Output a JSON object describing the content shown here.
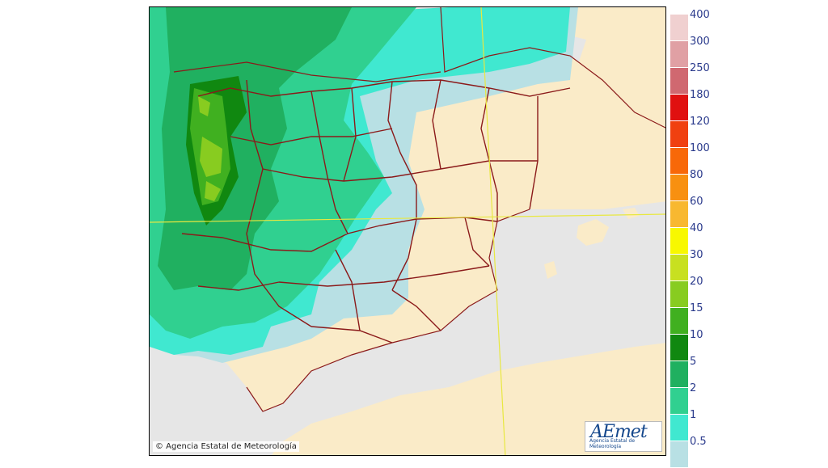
{
  "map": {
    "copyright": "© Agencia Estatal de Meteorología",
    "logo": {
      "word": "AEmet",
      "subtitle": "Agencia Estatal de Meteorología"
    }
  },
  "legend": {
    "unit": "",
    "items": [
      {
        "label": "400",
        "color": "#f0d0d0"
      },
      {
        "label": "300",
        "color": "#e0a0a4"
      },
      {
        "label": "250",
        "color": "#d06870"
      },
      {
        "label": "180",
        "color": "#e01010"
      },
      {
        "label": "120",
        "color": "#f04010"
      },
      {
        "label": "100",
        "color": "#f86808"
      },
      {
        "label": "80",
        "color": "#f89010"
      },
      {
        "label": "60",
        "color": "#f8b830"
      },
      {
        "label": "40",
        "color": "#f8f800"
      },
      {
        "label": "30",
        "color": "#c8e020"
      },
      {
        "label": "20",
        "color": "#88cc20"
      },
      {
        "label": "15",
        "color": "#40b020"
      },
      {
        "label": "10",
        "color": "#108810"
      },
      {
        "label": "5",
        "color": "#20b060"
      },
      {
        "label": "2",
        "color": "#30d090"
      },
      {
        "label": "1",
        "color": "#40e8d0"
      },
      {
        "label": "0.5",
        "color": "#b8e0e4"
      }
    ]
  },
  "colors": {
    "sea": "#e6e6e6",
    "land": "#faebc8",
    "borders": "#8b1a1a",
    "grid": "#e8e840"
  }
}
